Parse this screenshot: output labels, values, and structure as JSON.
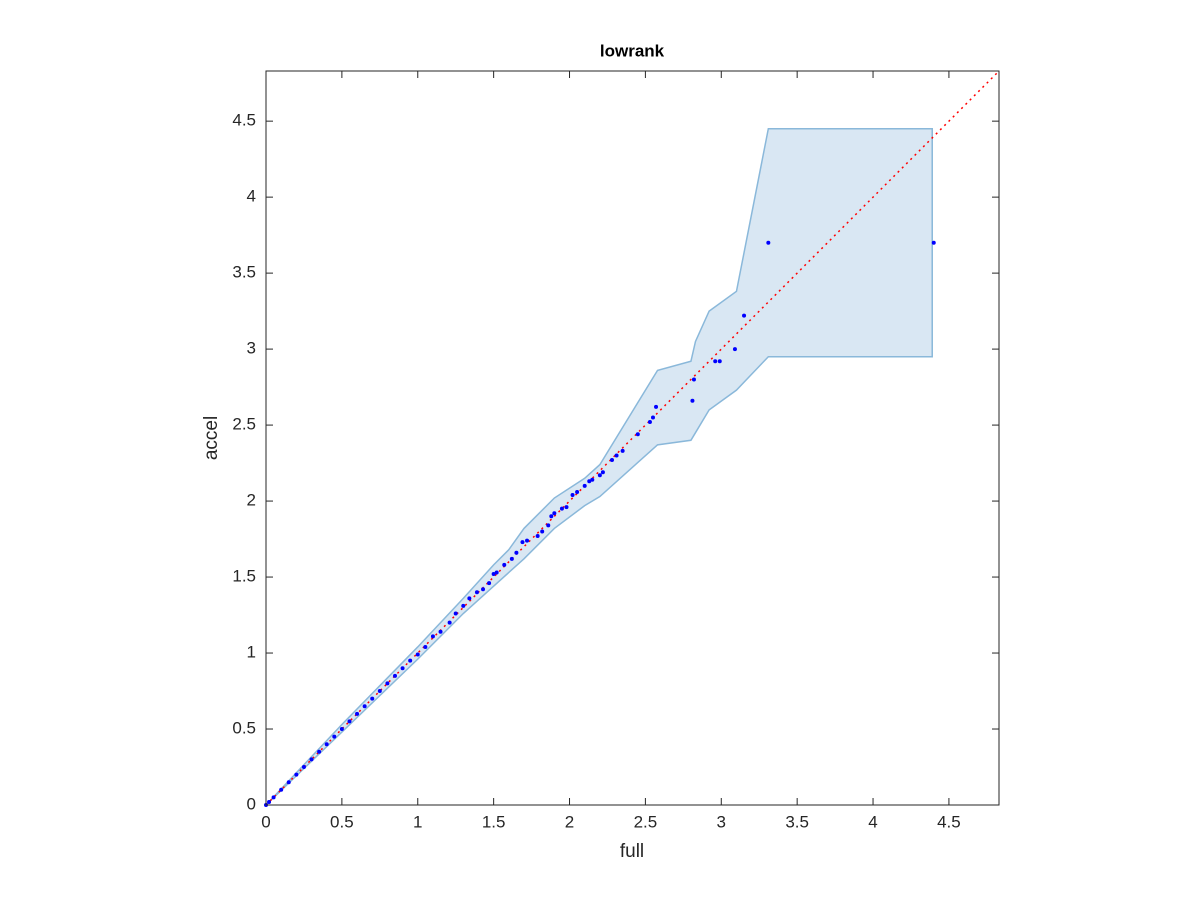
{
  "chart_data": {
    "type": "scatter",
    "title": "lowrank",
    "x_label": "full",
    "y_label": "accel",
    "xlim": [
      0,
      4.83
    ],
    "ylim": [
      0,
      4.83
    ],
    "xticks": [
      0,
      0.5,
      1,
      1.5,
      2,
      2.5,
      3,
      3.5,
      4,
      4.5
    ],
    "yticks": [
      0,
      0.5,
      1,
      1.5,
      2,
      2.5,
      3,
      3.5,
      4,
      4.5
    ],
    "series": [
      {
        "color": "#0000ff",
        "x": [
          0,
          0.02,
          0.05,
          0.1,
          0.15,
          0.2,
          0.25,
          0.3,
          0.35,
          0.4,
          0.45,
          0.5,
          0.55,
          0.6,
          0.65,
          0.7,
          0.75,
          0.8,
          0.85,
          0.9,
          0.95,
          1.0,
          1.05,
          1.1,
          1.15,
          1.21,
          1.25,
          1.3,
          1.34,
          1.39,
          1.43,
          1.47,
          1.5,
          1.52,
          1.57,
          1.62,
          1.65,
          1.69,
          1.72,
          1.79,
          1.82,
          1.86,
          1.88,
          1.9,
          1.95,
          1.98,
          2.02,
          2.05,
          2.1,
          2.13,
          2.15,
          2.2,
          2.22,
          2.28,
          2.31,
          2.35,
          2.45,
          2.53,
          2.55,
          2.57,
          2.81,
          2.82,
          2.96,
          2.99,
          3.09,
          3.15,
          3.31,
          4.4
        ],
        "values": [
          0,
          0.02,
          0.05,
          0.1,
          0.15,
          0.2,
          0.25,
          0.3,
          0.35,
          0.4,
          0.45,
          0.5,
          0.55,
          0.6,
          0.65,
          0.7,
          0.75,
          0.8,
          0.85,
          0.9,
          0.95,
          0.99,
          1.04,
          1.11,
          1.14,
          1.2,
          1.26,
          1.31,
          1.36,
          1.4,
          1.42,
          1.46,
          1.52,
          1.53,
          1.58,
          1.62,
          1.66,
          1.73,
          1.74,
          1.77,
          1.8,
          1.84,
          1.9,
          1.92,
          1.95,
          1.96,
          2.04,
          2.06,
          2.1,
          2.13,
          2.14,
          2.17,
          2.19,
          2.27,
          2.3,
          2.33,
          2.44,
          2.52,
          2.55,
          2.62,
          2.66,
          2.8,
          2.92,
          2.92,
          3.0,
          3.22,
          3.7,
          3.7
        ]
      }
    ],
    "band": {
      "color": "#d9e7f3",
      "edge_color": "#8ab8da",
      "x": [
        0,
        0.5,
        1,
        1.3,
        1.5,
        1.6,
        1.7,
        1.9,
        2.1,
        2.2,
        2.58,
        2.8,
        2.83,
        2.92,
        3.1,
        3.31,
        4.39
      ],
      "upper": [
        0,
        0.53,
        1.04,
        1.36,
        1.58,
        1.68,
        1.82,
        2.02,
        2.15,
        2.24,
        2.86,
        2.92,
        3.05,
        3.25,
        3.38,
        4.45,
        4.45
      ],
      "lower": [
        0,
        0.48,
        0.96,
        1.26,
        1.44,
        1.53,
        1.62,
        1.82,
        1.97,
        2.03,
        2.37,
        2.4,
        2.45,
        2.6,
        2.73,
        2.95,
        2.95
      ]
    },
    "reference_line": {
      "color": "#ff0000",
      "x": [
        0,
        4.83
      ],
      "values": [
        0,
        4.83
      ]
    }
  }
}
